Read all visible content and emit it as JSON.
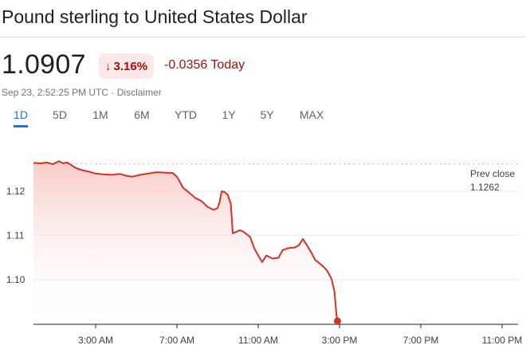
{
  "header": {
    "title": "Pound sterling to United States Dollar",
    "price": "1.0907",
    "change_percent": "3.16%",
    "change_abs": "-0.0356 Today",
    "timestamp": "Sep 23, 2:52:25 PM UTC · Disclaimer"
  },
  "tabs": [
    {
      "label": "1D",
      "active": true
    },
    {
      "label": "5D",
      "active": false
    },
    {
      "label": "1M",
      "active": false
    },
    {
      "label": "6M",
      "active": false
    },
    {
      "label": "YTD",
      "active": false
    },
    {
      "label": "1Y",
      "active": false
    },
    {
      "label": "5Y",
      "active": false
    },
    {
      "label": "MAX",
      "active": false
    }
  ],
  "colors": {
    "line": "#d93025",
    "fill_top": "#f7c5c1",
    "negative_text": "#a50e0e",
    "badge_bg": "#fce8e6",
    "active_tab": "#1a73e8"
  },
  "chart_data": {
    "type": "area",
    "prev_close_label": "Prev close",
    "prev_close_value": "1.1262",
    "prev_close": 1.1262,
    "y_ticks": [
      {
        "value": 1.12,
        "label": "1.12"
      },
      {
        "value": 1.11,
        "label": "1.11"
      },
      {
        "value": 1.1,
        "label": "1.10"
      }
    ],
    "x_ticks": [
      {
        "hour": 3,
        "label": "3:00 AM"
      },
      {
        "hour": 7,
        "label": "7:00 AM"
      },
      {
        "hour": 11,
        "label": "11:00 AM"
      },
      {
        "hour": 15,
        "label": "3:00 PM"
      },
      {
        "hour": 19,
        "label": "7:00 PM"
      },
      {
        "hour": 23,
        "label": "11:00 PM"
      }
    ],
    "series": [
      {
        "points": [
          [
            0.0,
            1.1264
          ],
          [
            0.3,
            1.1263
          ],
          [
            0.6,
            1.1265
          ],
          [
            0.9,
            1.1261
          ],
          [
            1.2,
            1.1268
          ],
          [
            1.4,
            1.1263
          ],
          [
            1.6,
            1.1265
          ],
          [
            1.8,
            1.1259
          ],
          [
            2.0,
            1.1253
          ],
          [
            2.3,
            1.1248
          ],
          [
            2.6,
            1.1245
          ],
          [
            3.0,
            1.124
          ],
          [
            3.4,
            1.1238
          ],
          [
            3.8,
            1.1237
          ],
          [
            4.2,
            1.1239
          ],
          [
            4.5,
            1.1235
          ],
          [
            4.8,
            1.1233
          ],
          [
            5.2,
            1.1237
          ],
          [
            5.6,
            1.124
          ],
          [
            6.0,
            1.1243
          ],
          [
            6.4,
            1.1242
          ],
          [
            6.8,
            1.1241
          ],
          [
            7.0,
            1.1233
          ],
          [
            7.1,
            1.1225
          ],
          [
            7.3,
            1.1208
          ],
          [
            7.6,
            1.1197
          ],
          [
            7.9,
            1.1185
          ],
          [
            8.2,
            1.1178
          ],
          [
            8.5,
            1.1165
          ],
          [
            8.8,
            1.1158
          ],
          [
            9.0,
            1.1162
          ],
          [
            9.1,
            1.1175
          ],
          [
            9.2,
            1.12
          ],
          [
            9.35,
            1.1198
          ],
          [
            9.5,
            1.1192
          ],
          [
            9.65,
            1.1172
          ],
          [
            9.75,
            1.1105
          ],
          [
            9.9,
            1.1108
          ],
          [
            10.1,
            1.1112
          ],
          [
            10.3,
            1.1108
          ],
          [
            10.6,
            1.1097
          ],
          [
            10.8,
            1.1072
          ],
          [
            11.0,
            1.1055
          ],
          [
            11.2,
            1.104
          ],
          [
            11.4,
            1.1055
          ],
          [
            11.7,
            1.1048
          ],
          [
            12.0,
            1.105
          ],
          [
            12.2,
            1.1067
          ],
          [
            12.5,
            1.1072
          ],
          [
            12.8,
            1.1073
          ],
          [
            13.0,
            1.1078
          ],
          [
            13.2,
            1.1092
          ],
          [
            13.4,
            1.1078
          ],
          [
            13.6,
            1.1063
          ],
          [
            13.8,
            1.1045
          ],
          [
            14.0,
            1.1038
          ],
          [
            14.2,
            1.103
          ],
          [
            14.4,
            1.102
          ],
          [
            14.6,
            1.1003
          ],
          [
            14.75,
            1.0975
          ],
          [
            14.85,
            1.092
          ],
          [
            14.9,
            1.0907
          ]
        ]
      }
    ],
    "last_point": {
      "hour": 14.9,
      "value": 1.0907
    }
  }
}
